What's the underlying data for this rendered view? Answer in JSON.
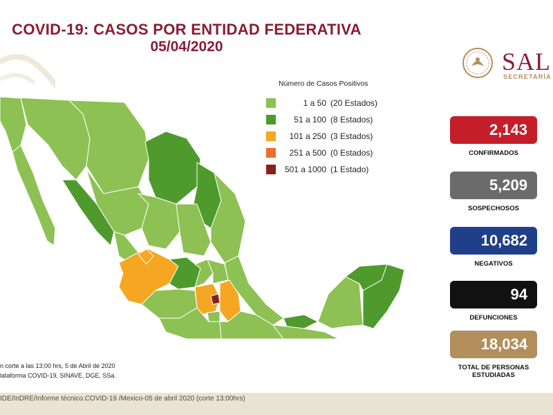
{
  "header": {
    "title": "COVID-19: CASOS POR ENTIDAD FEDERATIVA",
    "date": "05/04/2020"
  },
  "logo": {
    "name": "SAL",
    "subtitle": "SECRETARÍA D"
  },
  "legend": {
    "title": "Número de Casos Positivos",
    "items": [
      {
        "range": "1 a    50",
        "count": "(20 Estados)",
        "color": "#8dc153"
      },
      {
        "range": "51 a   100",
        "count": "(8 Estados)",
        "color": "#4f9a2c"
      },
      {
        "range": "101 a   250",
        "count": "(3 Estados)",
        "color": "#f5a623"
      },
      {
        "range": "251 a   500",
        "count": "(0 Estados)",
        "color": "#ec6e2c"
      },
      {
        "range": "501 a 1000",
        "count": "(1 Estado)",
        "color": "#8a1f1f"
      }
    ]
  },
  "stats": [
    {
      "value": "2,143",
      "label": "CONFIRMADOS",
      "color": "#c41e2a"
    },
    {
      "value": "5,209",
      "label": "SOSPECHOSOS",
      "color": "#6b6b6b"
    },
    {
      "value": "10,682",
      "label": "NEGATIVOS",
      "color": "#1f3f8a"
    },
    {
      "value": "94",
      "label": "DEFUNCIONES",
      "color": "#111111"
    },
    {
      "value": "18,034",
      "label": "TOTAL DE PERSONAS ESTUDIADAS",
      "color": "#b38e5d"
    }
  ],
  "footnotes": {
    "cut": "n corte a las 13:00 hrs, 5 de Abril de 2020",
    "source": "lataforma COVID-19, SINAVE, DGE, SSa.",
    "bottom": "IDE/InDRE/Informe técnico.COVID-19 /Mexico-05 de abril 2020 (corte 13:00hrs)"
  }
}
